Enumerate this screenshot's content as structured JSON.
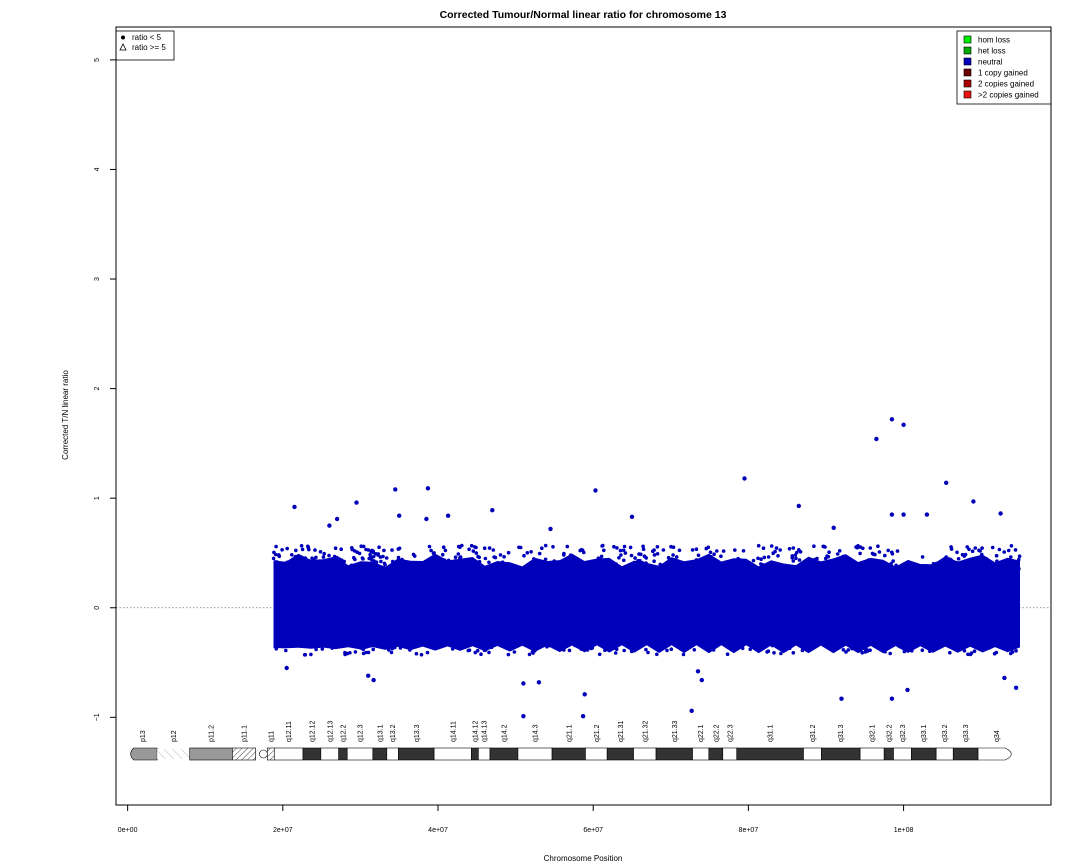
{
  "chart_data": {
    "type": "scatter",
    "title": "Corrected Tumour/Normal linear ratio for chromosome  13",
    "xlabel": "Chromosome Position",
    "ylabel": "Corrected T/N linear ratio",
    "xlim": [
      -1500000,
      119000000
    ],
    "ylim": [
      -1.8,
      5.3
    ],
    "x_ticks": [
      {
        "value": 0,
        "label": "0e+00"
      },
      {
        "value": 20000000,
        "label": "2e+07"
      },
      {
        "value": 40000000,
        "label": "4e+07"
      },
      {
        "value": 60000000,
        "label": "6e+07"
      },
      {
        "value": 80000000,
        "label": "8e+07"
      },
      {
        "value": 100000000,
        "label": "1e+08"
      }
    ],
    "y_ticks": [
      {
        "value": -1,
        "label": "−1"
      },
      {
        "value": 0,
        "label": "0"
      },
      {
        "value": 1,
        "label": "1"
      },
      {
        "value": 2,
        "label": "2"
      },
      {
        "value": 3,
        "label": "3"
      },
      {
        "value": 4,
        "label": "4"
      },
      {
        "value": 5,
        "label": "5"
      }
    ],
    "reference_line": {
      "y": 0,
      "style": "dotted"
    },
    "point_cloud": {
      "series": "neutral",
      "x_range": [
        18800000,
        115000000
      ],
      "y_core_range": [
        -0.35,
        0.45
      ]
    },
    "outliers": [
      {
        "x": 21500000,
        "y": 0.92
      },
      {
        "x": 26000000,
        "y": 0.75
      },
      {
        "x": 27000000,
        "y": 0.81
      },
      {
        "x": 29500000,
        "y": 0.96
      },
      {
        "x": 34500000,
        "y": 1.08
      },
      {
        "x": 35000000,
        "y": 0.84
      },
      {
        "x": 38500000,
        "y": 0.81
      },
      {
        "x": 38700000,
        "y": 1.09
      },
      {
        "x": 41300000,
        "y": 0.84
      },
      {
        "x": 47000000,
        "y": 0.89
      },
      {
        "x": 54500000,
        "y": 0.72
      },
      {
        "x": 60300000,
        "y": 1.07
      },
      {
        "x": 65000000,
        "y": 0.83
      },
      {
        "x": 79500000,
        "y": 1.18
      },
      {
        "x": 86500000,
        "y": 0.93
      },
      {
        "x": 91000000,
        "y": 0.73
      },
      {
        "x": 96500000,
        "y": 1.54
      },
      {
        "x": 98500000,
        "y": 1.72
      },
      {
        "x": 100000000,
        "y": 1.67
      },
      {
        "x": 98500000,
        "y": 0.85
      },
      {
        "x": 100000000,
        "y": 0.85
      },
      {
        "x": 103000000,
        "y": 0.85
      },
      {
        "x": 105500000,
        "y": 1.14
      },
      {
        "x": 109000000,
        "y": 0.97
      },
      {
        "x": 112500000,
        "y": 0.86
      },
      {
        "x": 20500000,
        "y": -0.55
      },
      {
        "x": 31000000,
        "y": -0.62
      },
      {
        "x": 31700000,
        "y": -0.66
      },
      {
        "x": 51000000,
        "y": -0.69
      },
      {
        "x": 53000000,
        "y": -0.68
      },
      {
        "x": 51000000,
        "y": -0.99
      },
      {
        "x": 58700000,
        "y": -0.99
      },
      {
        "x": 58900000,
        "y": -0.79
      },
      {
        "x": 72700000,
        "y": -0.94
      },
      {
        "x": 73500000,
        "y": -0.58
      },
      {
        "x": 74000000,
        "y": -0.66
      },
      {
        "x": 92000000,
        "y": -0.83
      },
      {
        "x": 98500000,
        "y": -0.83
      },
      {
        "x": 100500000,
        "y": -0.75
      },
      {
        "x": 114500000,
        "y": -0.73
      },
      {
        "x": 113000000,
        "y": -0.64
      }
    ],
    "legend_shapes": {
      "position": "top-left",
      "entries": [
        {
          "marker": "filled-circle",
          "label": "ratio < 5"
        },
        {
          "marker": "open-triangle",
          "label": "ratio >= 5"
        }
      ]
    },
    "legend_categories": {
      "position": "top-right",
      "entries": [
        {
          "label": "hom loss",
          "color": "#00ee00"
        },
        {
          "label": "het loss",
          "color": "#00aa00"
        },
        {
          "label": "neutral",
          "color": "#0000bb"
        },
        {
          "label": "1 copy gained",
          "color": "#6b0000"
        },
        {
          "label": "2 copies gained",
          "color": "#aa0000"
        },
        {
          "label": ">2 copies gained",
          "color": "#ee1111"
        }
      ]
    },
    "ideogram": {
      "chromosome": "13",
      "centromere": 17500000,
      "bands": [
        {
          "name": "p13",
          "start": 0,
          "end": 3800000,
          "stain": "acen-cap"
        },
        {
          "name": "p12",
          "start": 3800000,
          "end": 8000000,
          "stain": "stalk"
        },
        {
          "name": "p11.2",
          "start": 8000000,
          "end": 13500000,
          "stain": "gvar"
        },
        {
          "name": "p11.1",
          "start": 13500000,
          "end": 16500000,
          "stain": "hatch"
        },
        {
          "name": "q11",
          "start": 18000000,
          "end": 18900000,
          "stain": "hatch"
        },
        {
          "name": "q12.11",
          "start": 18900000,
          "end": 22600000,
          "stain": "gneg"
        },
        {
          "name": "q12.12",
          "start": 22600000,
          "end": 24900000,
          "stain": "gpos"
        },
        {
          "name": "q12.13",
          "start": 24900000,
          "end": 27200000,
          "stain": "gneg"
        },
        {
          "name": "q12.2",
          "start": 27200000,
          "end": 28300000,
          "stain": "gpos"
        },
        {
          "name": "q12.3",
          "start": 28300000,
          "end": 31600000,
          "stain": "gneg"
        },
        {
          "name": "q13.1",
          "start": 31600000,
          "end": 33400000,
          "stain": "gpos"
        },
        {
          "name": "q13.2",
          "start": 33400000,
          "end": 34900000,
          "stain": "gneg"
        },
        {
          "name": "q13.3",
          "start": 34900000,
          "end": 39500000,
          "stain": "gpos"
        },
        {
          "name": "q14.11",
          "start": 39500000,
          "end": 44300000,
          "stain": "gneg"
        },
        {
          "name": "q14.12",
          "start": 44300000,
          "end": 45200000,
          "stain": "gpos"
        },
        {
          "name": "q14.13",
          "start": 45200000,
          "end": 46700000,
          "stain": "gneg"
        },
        {
          "name": "q14.2",
          "start": 46700000,
          "end": 50300000,
          "stain": "gpos"
        },
        {
          "name": "q14.3",
          "start": 50300000,
          "end": 54700000,
          "stain": "gneg"
        },
        {
          "name": "q21.1",
          "start": 54700000,
          "end": 59000000,
          "stain": "gpos"
        },
        {
          "name": "q21.2",
          "start": 59000000,
          "end": 61800000,
          "stain": "gneg"
        },
        {
          "name": "q21.31",
          "start": 61800000,
          "end": 65200000,
          "stain": "gpos"
        },
        {
          "name": "q21.32",
          "start": 65200000,
          "end": 68100000,
          "stain": "gneg"
        },
        {
          "name": "q21.33",
          "start": 68100000,
          "end": 72800000,
          "stain": "gpos"
        },
        {
          "name": "q22.1",
          "start": 72800000,
          "end": 74900000,
          "stain": "gneg"
        },
        {
          "name": "q22.2",
          "start": 74900000,
          "end": 76700000,
          "stain": "gpos"
        },
        {
          "name": "q22.3",
          "start": 76700000,
          "end": 78500000,
          "stain": "gneg"
        },
        {
          "name": "q31.1",
          "start": 78500000,
          "end": 87100000,
          "stain": "gpos"
        },
        {
          "name": "q31.2",
          "start": 87100000,
          "end": 89400000,
          "stain": "gneg"
        },
        {
          "name": "q31.3",
          "start": 89400000,
          "end": 94400000,
          "stain": "gpos"
        },
        {
          "name": "q32.1",
          "start": 94400000,
          "end": 97500000,
          "stain": "gneg"
        },
        {
          "name": "q32.2",
          "start": 97500000,
          "end": 98700000,
          "stain": "gpos"
        },
        {
          "name": "q32.3",
          "start": 98700000,
          "end": 101000000,
          "stain": "gneg"
        },
        {
          "name": "q33.1",
          "start": 101000000,
          "end": 104200000,
          "stain": "gpos"
        },
        {
          "name": "q33.2",
          "start": 104200000,
          "end": 106400000,
          "stain": "gneg"
        },
        {
          "name": "q33.3",
          "start": 106400000,
          "end": 109600000,
          "stain": "gpos"
        },
        {
          "name": "q34",
          "start": 109600000,
          "end": 114400000,
          "stain": "gneg"
        }
      ]
    },
    "grid": false
  }
}
